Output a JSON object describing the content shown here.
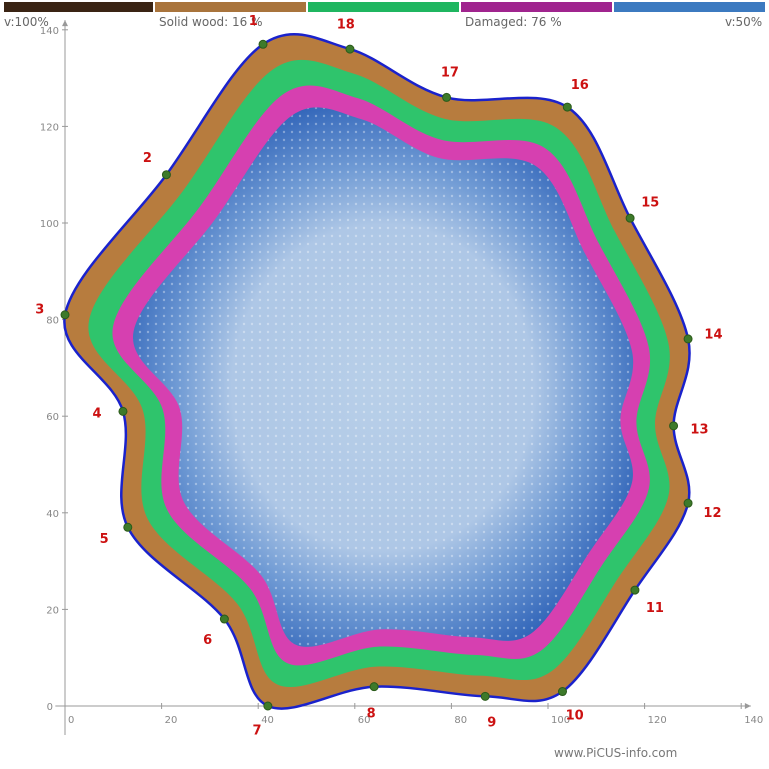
{
  "legend": {
    "left_label": "v:100%",
    "solid_label": "Solid wood: 16 %",
    "damaged_label": "Damaged: 76 %",
    "right_label": "v:50%",
    "colors": [
      "#3a2414",
      "#a9743c",
      "#1fb660",
      "#a0248e",
      "#3c7ac0"
    ]
  },
  "chart_data": {
    "type": "tomogram",
    "xlim": [
      0,
      140
    ],
    "ylim": [
      0,
      140
    ],
    "x_ticks": [
      0,
      20,
      40,
      60,
      80,
      100,
      120,
      140
    ],
    "y_ticks": [
      20,
      40,
      60,
      80,
      100,
      120,
      140
    ],
    "solid_wood_percent": 16,
    "damaged_percent": 76,
    "sensors": [
      {
        "id": "1",
        "x": 41,
        "y": 137
      },
      {
        "id": "18",
        "x": 59,
        "y": 136
      },
      {
        "id": "17",
        "x": 79,
        "y": 126
      },
      {
        "id": "16",
        "x": 104,
        "y": 124
      },
      {
        "id": "15",
        "x": 117,
        "y": 101
      },
      {
        "id": "14",
        "x": 129,
        "y": 76
      },
      {
        "id": "13",
        "x": 126,
        "y": 58
      },
      {
        "id": "12",
        "x": 129,
        "y": 42
      },
      {
        "id": "11",
        "x": 118,
        "y": 24
      },
      {
        "id": "10",
        "x": 103,
        "y": 3
      },
      {
        "id": "9",
        "x": 87,
        "y": 2
      },
      {
        "id": "8",
        "x": 64,
        "y": 4
      },
      {
        "id": "7",
        "x": 42,
        "y": 0
      },
      {
        "id": "6",
        "x": 33,
        "y": 18
      },
      {
        "id": "5",
        "x": 13,
        "y": 37
      },
      {
        "id": "4",
        "x": 12,
        "y": 61
      },
      {
        "id": "3",
        "x": 0,
        "y": 81
      },
      {
        "id": "2",
        "x": 21,
        "y": 110
      }
    ]
  },
  "watermark": "www.PiCUS-info.com"
}
